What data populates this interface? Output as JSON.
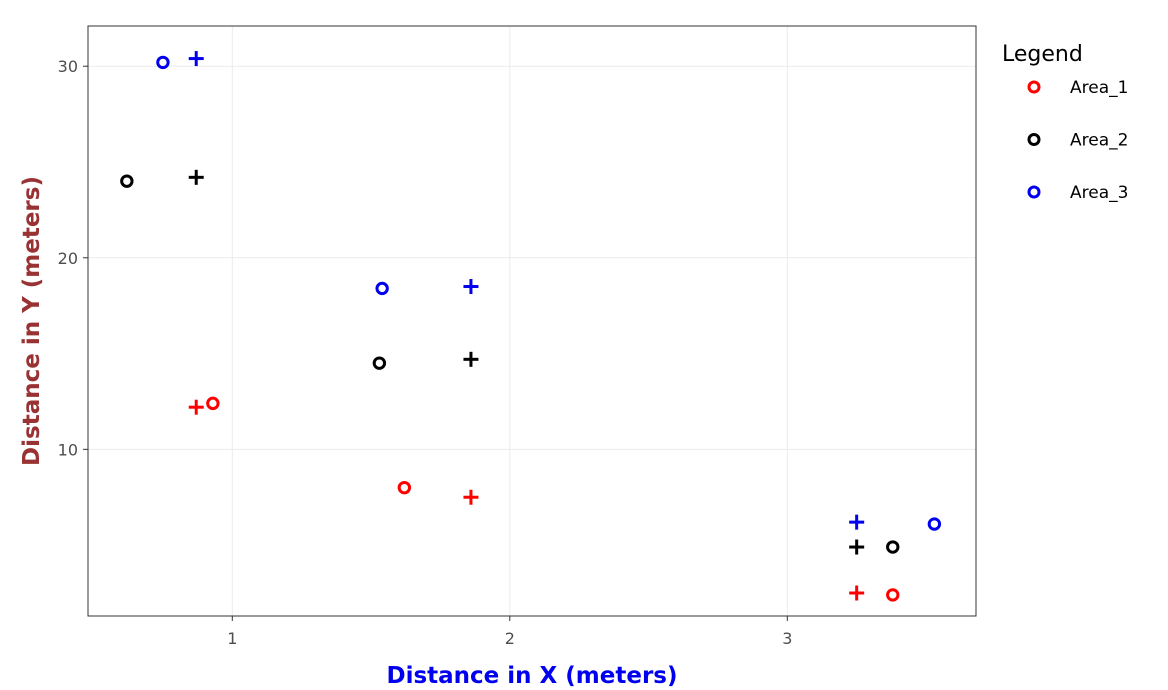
{
  "chart_data": {
    "type": "scatter",
    "title": "",
    "xlabel": "Distance in X (meters)",
    "ylabel": "Distance in Y (meters)",
    "xlabel_color": "#0000ee",
    "ylabel_color": "#993333",
    "xlim": [
      0.48,
      3.68
    ],
    "ylim": [
      1.3,
      32.1
    ],
    "x_ticks": [
      1,
      2,
      3
    ],
    "y_ticks": [
      10,
      20,
      30
    ],
    "x_tick_labels": [
      "1",
      "2",
      "3"
    ],
    "y_tick_labels": [
      "10",
      "20",
      "30"
    ],
    "grid": true,
    "legend": {
      "title": "Legend",
      "position": "right",
      "entries": [
        {
          "label": "Area_1",
          "color": "#ff0000",
          "marker": "circle-open"
        },
        {
          "label": "Area_2",
          "color": "#000000",
          "marker": "circle-open"
        },
        {
          "label": "Area_3",
          "color": "#0000ee",
          "marker": "circle-open"
        }
      ]
    },
    "series": [
      {
        "name": "Area_1",
        "color": "#ff0000",
        "circles": [
          {
            "x": 0.93,
            "y": 12.4
          },
          {
            "x": 1.62,
            "y": 8.0
          },
          {
            "x": 3.38,
            "y": 2.4
          }
        ],
        "crosses": [
          {
            "x": 0.87,
            "y": 12.2
          },
          {
            "x": 1.86,
            "y": 7.5
          },
          {
            "x": 3.25,
            "y": 2.5
          }
        ]
      },
      {
        "name": "Area_2",
        "color": "#000000",
        "circles": [
          {
            "x": 0.62,
            "y": 24.0
          },
          {
            "x": 1.53,
            "y": 14.5
          },
          {
            "x": 3.38,
            "y": 4.9
          }
        ],
        "crosses": [
          {
            "x": 0.87,
            "y": 24.2
          },
          {
            "x": 1.86,
            "y": 14.7
          },
          {
            "x": 3.25,
            "y": 4.9
          }
        ]
      },
      {
        "name": "Area_3",
        "color": "#0000ee",
        "circles": [
          {
            "x": 0.75,
            "y": 30.2
          },
          {
            "x": 1.54,
            "y": 18.4
          },
          {
            "x": 3.53,
            "y": 6.1
          }
        ],
        "crosses": [
          {
            "x": 0.87,
            "y": 30.4
          },
          {
            "x": 1.86,
            "y": 18.5
          },
          {
            "x": 3.25,
            "y": 6.2
          }
        ]
      }
    ]
  }
}
